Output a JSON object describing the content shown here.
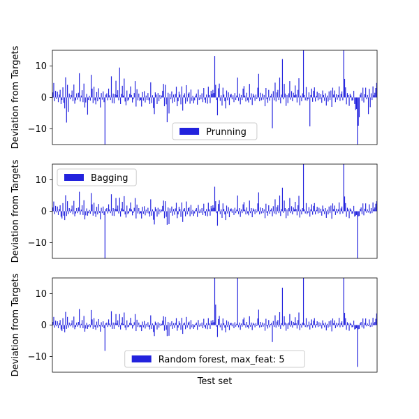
{
  "chart_data": [
    {
      "type": "bar",
      "ylabel": "Deviation from Targets",
      "xlabel": "",
      "ylim": [
        -15,
        15
      ],
      "yticks": [
        -10,
        0,
        10
      ],
      "bar_color": "#2222dd",
      "legend_placement": "lower-center",
      "series": [
        {
          "name": "Prunning",
          "values": [
            1.6,
            4.6,
            -1.2,
            2.1,
            -0.5,
            1.8,
            -1.5,
            0.9,
            2.4,
            -2.1,
            -0.8,
            3.2,
            -1.7,
            -3.5,
            6.4,
            -8.0,
            4.0,
            -4.6,
            1.2,
            -0.6,
            0.8,
            2.2,
            -1.2,
            4.1,
            -2.0,
            -0.9,
            1.3,
            -0.7,
            1.5,
            7.7,
            -1.3,
            0.6,
            2.3,
            -1.5,
            4.4,
            -3.2,
            -1.6,
            1.1,
            -5.5,
            -0.8,
            0.5,
            -1.0,
            7.2,
            2.8,
            -1.8,
            3.4,
            -0.9,
            -2.2,
            1.7,
            -1.2,
            2.9,
            -0.6,
            -3.2,
            1.4,
            -0.7,
            1.9,
            -1.5,
            -15.0,
            0.9,
            1.3,
            -0.9,
            2.8,
            0.7,
            -0.8,
            6.7,
            -1.8,
            1.2,
            -1.9,
            1.0,
            5.3,
            0.8,
            2.3,
            -0.9,
            9.5,
            -2.1,
            1.1,
            3.7,
            0.6,
            6.0,
            -1.3,
            -2.5,
            2.2,
            -1.1,
            -0.7,
            1.1,
            3.5,
            0.8,
            -1.6,
            -0.6,
            1.4,
            5.2,
            -2.9,
            2.6,
            -0.9,
            1.2,
            -1.1,
            -0.8,
            -2.9,
            1.7,
            -1.0,
            2.0,
            -1.6,
            0.6,
            -0.8,
            1.4,
            -0.9,
            -2.1,
            4.8,
            -1.8,
            0.7,
            -3.4,
            -5.3,
            1.6,
            0.9,
            -2.1,
            1.4,
            -1.2,
            0.8,
            -0.5,
            0.6,
            2.1,
            4.3,
            -2.8,
            4.0,
            -2.2,
            -7.9,
            1.5,
            -5.1,
            1.1,
            -0.6,
            1.9,
            -1.8,
            0.9,
            -1.4,
            1.1,
            3.4,
            -2.8,
            -1.2,
            1.8,
            0.9,
            -2.2,
            3.5,
            -4.2,
            0.7,
            1.3,
            -2.0,
            3.9,
            -1.3,
            1.2,
            1.6,
            -2.0,
            2.5,
            -1.1,
            0.5,
            -1.9,
            -0.9,
            0.6,
            1.2,
            -2.3,
            2.5,
            -0.8,
            0.8,
            -0.6,
            1.3,
            -1.5,
            3.0,
            -0.7,
            -1.7,
            0.9,
            -2.0,
            3.4,
            0.8,
            -1.8,
            2.1,
            1.1,
            2.4,
            1.4,
            13.2,
            4.0,
            -0.8,
            -5.7,
            2.9,
            4.4,
            -1.1,
            0.7,
            -2.6,
            3.1,
            0.9,
            -1.2,
            -3.5,
            2.2,
            -0.9,
            1.6,
            -2.4,
            0.9,
            1.1,
            -0.6,
            0.7,
            -1.5,
            1.4,
            -0.8,
            0.6,
            6.3,
            -1.1,
            1.2,
            -2.2,
            0.8,
            -0.8,
            2.8,
            3.6,
            0.6,
            -1.3,
            1.5,
            -0.9,
            -1.6,
            4.3,
            -0.7,
            1.3,
            -2.4,
            1.1,
            0.6,
            -1.1,
            0.9,
            -0.5,
            3.1,
            7.5,
            -1.2,
            1.5,
            -0.9,
            1.2,
            -0.7,
            0.8,
            -2.8,
            3.0,
            -0.6,
            -1.7,
            2.4,
            -1.0,
            0.5,
            1.1,
            -9.8,
            2.0,
            -0.9,
            4.7,
            -1.3,
            1.6,
            2.4,
            -0.8,
            6.3,
            -1.9,
            0.9,
            12.2,
            -0.6,
            4.3,
            1.2,
            -2.7,
            0.8,
            -1.8,
            1.3,
            5.2,
            -0.7,
            2.0,
            -1.2,
            1.5,
            0.7,
            3.8,
            0.9,
            -1.6,
            2.4,
            6.1,
            -2.5,
            0.6,
            -1.2,
            1.3,
            15.0,
            0.8,
            -0.9,
            3.3,
            -1.1,
            -0.6,
            1.6,
            -9.2,
            0.8,
            2.8,
            -1.4,
            2.1,
            3.2,
            -1.3,
            0.5,
            1.8,
            -0.9,
            1.4,
            -0.6,
            1.0,
            -1.7,
            2.2,
            0.8,
            -1.1,
            1.3,
            -2.6,
            0.6,
            -1.3,
            1.9,
            -0.8,
            2.2,
            -3.0,
            3.1,
            0.9,
            2.2,
            -1.5,
            1.0,
            -0.7,
            0.8,
            3.5,
            -1.1,
            1.1,
            1.9,
            -0.9,
            15.0,
            5.9,
            3.2,
            -2.2,
            1.4,
            0.8,
            -2.7,
            1.1,
            0.6,
            -1.0,
            -0.9,
            2.1,
            -2.1,
            -4.0,
            -3.7,
            -15.0,
            -9.0,
            -6.3,
            0.9,
            1.5,
            -1.1,
            3.1,
            -1.6,
            1.0,
            3.1,
            -0.6,
            0.8,
            -5.3,
            2.7,
            -3.1,
            1.3,
            -0.8,
            3.5,
            0.7,
            1.5,
            3.0,
            4.6
          ]
        }
      ]
    },
    {
      "type": "bar",
      "ylabel": "Deviation from Targets",
      "xlabel": "",
      "ylim": [
        -15,
        15
      ],
      "yticks": [
        -10,
        0,
        10
      ],
      "bar_color": "#2222dd",
      "legend_placement": "upper-left",
      "series": [
        {
          "name": "Bagging",
          "values": [
            1.2,
            3.1,
            -0.9,
            1.7,
            -0.4,
            1.5,
            -1.2,
            0.7,
            1.9,
            -1.7,
            -2.3,
            2.6,
            -1.4,
            -2.8,
            5.1,
            -1.5,
            3.2,
            -0.9,
            1.0,
            -0.5,
            0.6,
            1.8,
            -1.0,
            3.3,
            -1.6,
            -0.7,
            1.0,
            -0.6,
            1.2,
            6.2,
            -1.1,
            0.5,
            1.9,
            -1.2,
            3.5,
            -2.6,
            -1.3,
            0.9,
            -1.4,
            -0.6,
            0.4,
            -0.8,
            5.8,
            2.2,
            -1.4,
            2.7,
            -0.7,
            -1.8,
            1.4,
            -1.0,
            2.3,
            -0.5,
            -2.6,
            1.1,
            -0.6,
            1.5,
            -1.2,
            -15.0,
            0.7,
            1.0,
            -0.7,
            2.2,
            0.6,
            -0.6,
            5.4,
            -1.4,
            1.0,
            -1.5,
            0.8,
            4.2,
            0.6,
            1.8,
            -0.7,
            4.3,
            -1.7,
            0.9,
            3.0,
            0.5,
            4.8,
            -1.0,
            -2.0,
            1.8,
            -0.9,
            -0.6,
            0.9,
            2.8,
            0.6,
            -1.3,
            -0.5,
            1.1,
            4.2,
            -2.3,
            2.1,
            -0.7,
            1.0,
            -0.9,
            -0.6,
            -2.3,
            1.4,
            -0.8,
            1.6,
            -1.3,
            0.5,
            -0.6,
            1.1,
            -0.7,
            -1.7,
            3.8,
            -1.4,
            0.6,
            -2.7,
            -4.2,
            1.3,
            0.7,
            -1.7,
            1.1,
            -1.0,
            0.6,
            -0.4,
            0.5,
            1.7,
            3.4,
            -2.2,
            3.2,
            -1.8,
            -4.3,
            1.2,
            -4.1,
            0.9,
            -0.5,
            1.5,
            -1.4,
            0.7,
            -1.1,
            0.9,
            2.7,
            -2.2,
            -1.0,
            1.4,
            0.7,
            -1.8,
            2.8,
            -3.4,
            0.6,
            1.0,
            -1.6,
            3.1,
            -1.0,
            1.0,
            1.3,
            -1.6,
            2.0,
            -0.9,
            0.4,
            -1.5,
            -0.7,
            0.5,
            1.0,
            -1.8,
            2.0,
            -0.6,
            0.6,
            -0.5,
            1.0,
            -1.2,
            2.4,
            -0.6,
            -1.4,
            0.7,
            -1.6,
            2.7,
            0.6,
            -1.4,
            1.7,
            0.9,
            1.9,
            1.1,
            7.8,
            3.2,
            -0.6,
            -4.6,
            2.3,
            3.5,
            -0.9,
            0.6,
            -2.1,
            2.5,
            0.7,
            -1.0,
            -2.8,
            1.8,
            -0.7,
            1.3,
            -1.9,
            0.7,
            0.9,
            -0.5,
            0.6,
            -1.2,
            1.1,
            -0.6,
            0.5,
            5.0,
            -0.9,
            1.0,
            -1.8,
            0.6,
            -0.6,
            2.2,
            2.9,
            0.5,
            -1.0,
            1.2,
            -0.7,
            -1.3,
            3.4,
            -0.6,
            1.0,
            -1.9,
            0.9,
            0.5,
            -0.9,
            0.7,
            -0.4,
            2.5,
            6.0,
            -1.0,
            1.2,
            -0.7,
            1.0,
            -0.6,
            0.6,
            -2.2,
            2.4,
            -0.5,
            -1.4,
            1.9,
            -0.8,
            0.4,
            0.9,
            -1.6,
            1.6,
            -0.7,
            3.8,
            -1.0,
            1.3,
            1.9,
            -0.6,
            5.0,
            -1.5,
            0.7,
            7.5,
            -0.5,
            3.4,
            1.0,
            -2.2,
            0.6,
            -1.4,
            1.0,
            4.2,
            -0.6,
            1.6,
            -1.0,
            1.2,
            0.6,
            3.0,
            0.7,
            -1.3,
            1.9,
            4.9,
            -2.0,
            0.5,
            -1.0,
            1.0,
            15.0,
            0.6,
            -0.7,
            2.6,
            -0.9,
            -0.5,
            1.3,
            -1.7,
            0.6,
            2.2,
            -1.1,
            1.7,
            2.6,
            -1.0,
            0.4,
            1.4,
            -0.7,
            1.1,
            -0.5,
            0.8,
            -1.4,
            1.8,
            0.6,
            -0.9,
            1.0,
            -2.1,
            0.5,
            -1.0,
            1.5,
            -0.6,
            1.8,
            -2.4,
            2.5,
            0.7,
            1.8,
            -1.2,
            0.8,
            -0.6,
            0.6,
            2.8,
            -0.9,
            0.9,
            1.5,
            -0.7,
            15.0,
            4.7,
            2.6,
            -1.8,
            1.1,
            0.6,
            -2.2,
            0.9,
            0.5,
            -0.8,
            -0.7,
            1.7,
            -1.7,
            -1.4,
            -1.2,
            -15.0,
            -1.6,
            -1.5,
            0.7,
            1.2,
            -0.9,
            2.5,
            -1.3,
            0.8,
            2.5,
            -0.5,
            0.6,
            -0.4,
            2.2,
            -0.7,
            1.0,
            -0.6,
            2.8,
            0.6,
            1.2,
            2.4,
            3.2
          ]
        }
      ]
    },
    {
      "type": "bar",
      "ylabel": "Deviation from Targets",
      "xlabel": "Test set",
      "ylim": [
        -15,
        15
      ],
      "yticks": [
        -10,
        0,
        10
      ],
      "bar_color": "#2222dd",
      "legend_placement": "lower-center",
      "series": [
        {
          "name": "Random forest, max_feat: 5",
          "values": [
            1.0,
            2.6,
            -0.8,
            1.4,
            -0.4,
            1.2,
            -1.0,
            0.6,
            1.6,
            -1.4,
            -1.9,
            2.2,
            -1.2,
            -2.3,
            4.2,
            -1.2,
            2.6,
            -0.8,
            0.8,
            -0.4,
            0.5,
            1.5,
            -0.8,
            2.7,
            -1.3,
            -0.6,
            0.8,
            -0.5,
            1.0,
            5.1,
            -0.9,
            0.4,
            1.6,
            -1.0,
            2.9,
            -2.1,
            -1.1,
            0.7,
            -1.2,
            -0.5,
            0.3,
            -0.7,
            4.8,
            1.8,
            -1.2,
            2.2,
            -0.6,
            -1.5,
            1.1,
            -0.8,
            1.9,
            -0.4,
            -2.1,
            0.9,
            -0.5,
            1.2,
            -1.0,
            -8.2,
            0.6,
            0.8,
            -0.6,
            1.8,
            0.5,
            -0.5,
            4.4,
            -1.2,
            0.8,
            -1.2,
            0.7,
            3.5,
            0.5,
            1.5,
            -0.6,
            3.5,
            -1.4,
            0.7,
            2.5,
            0.4,
            4.0,
            -0.8,
            -1.6,
            1.5,
            -0.7,
            -0.5,
            0.7,
            2.3,
            0.5,
            -1.1,
            -0.4,
            0.9,
            3.5,
            -1.9,
            1.7,
            -0.6,
            0.8,
            -0.7,
            -0.5,
            -1.9,
            1.1,
            -0.7,
            1.3,
            -1.1,
            0.4,
            -0.5,
            0.9,
            -0.6,
            -1.4,
            3.1,
            -1.2,
            0.5,
            -2.2,
            -3.5,
            1.1,
            0.6,
            -1.4,
            0.9,
            -0.8,
            0.5,
            -0.3,
            0.4,
            1.4,
            2.8,
            -1.8,
            2.6,
            -1.5,
            -3.5,
            1.0,
            -3.4,
            0.7,
            -0.4,
            1.2,
            -1.2,
            0.6,
            -0.9,
            0.7,
            2.2,
            -1.8,
            -0.8,
            1.2,
            0.6,
            -1.5,
            2.3,
            -2.8,
            0.5,
            0.8,
            -1.3,
            2.6,
            -0.8,
            0.8,
            1.1,
            -1.3,
            1.6,
            -0.7,
            0.3,
            -1.2,
            -0.6,
            0.4,
            0.8,
            -1.5,
            1.6,
            -0.5,
            0.5,
            -0.4,
            0.8,
            -1.0,
            2.0,
            -0.5,
            -1.1,
            0.6,
            -1.3,
            2.2,
            0.5,
            -1.2,
            1.4,
            0.7,
            1.6,
            0.9,
            15.0,
            6.5,
            -0.5,
            -3.8,
            1.9,
            2.9,
            -0.7,
            0.5,
            -1.7,
            2.1,
            0.6,
            -0.8,
            -2.3,
            1.5,
            -0.6,
            1.1,
            -1.6,
            0.6,
            0.7,
            -0.4,
            0.5,
            -1.0,
            0.9,
            -0.5,
            0.4,
            15.0,
            -0.7,
            0.8,
            -1.5,
            0.5,
            -0.5,
            1.8,
            2.4,
            0.4,
            -0.8,
            1.0,
            -0.6,
            -1.1,
            2.8,
            -0.5,
            0.8,
            -1.6,
            0.7,
            0.4,
            -0.7,
            0.6,
            -0.3,
            2.1,
            4.9,
            -0.8,
            1.0,
            -0.6,
            0.8,
            -0.5,
            0.5,
            -1.8,
            2.0,
            -0.4,
            -1.1,
            1.6,
            -0.7,
            0.3,
            0.7,
            -5.4,
            1.3,
            -0.6,
            3.1,
            -0.8,
            1.1,
            1.6,
            -0.5,
            4.1,
            -1.2,
            0.6,
            11.9,
            -0.4,
            2.8,
            0.8,
            -1.8,
            0.5,
            -1.2,
            0.8,
            3.5,
            -0.5,
            1.3,
            -0.8,
            1.0,
            0.5,
            2.5,
            0.6,
            -1.1,
            1.6,
            4.0,
            -1.6,
            0.4,
            -0.8,
            0.8,
            15.0,
            0.5,
            -0.6,
            2.2,
            -0.7,
            -0.4,
            1.1,
            -1.4,
            0.5,
            1.8,
            -0.9,
            1.4,
            2.2,
            -0.8,
            0.3,
            1.2,
            -0.6,
            0.9,
            -0.4,
            0.7,
            -1.1,
            1.5,
            0.5,
            -0.7,
            0.8,
            -1.7,
            0.4,
            -0.8,
            1.2,
            -0.5,
            1.5,
            -2.0,
            2.1,
            0.6,
            1.5,
            -1.0,
            0.7,
            -0.5,
            0.5,
            2.3,
            -0.7,
            0.7,
            1.2,
            -0.6,
            15.0,
            3.9,
            2.2,
            -1.5,
            0.9,
            0.5,
            -1.8,
            0.7,
            0.4,
            -0.7,
            -0.6,
            1.4,
            -1.4,
            -1.2,
            -1.0,
            -13.3,
            -1.3,
            -1.2,
            0.6,
            1.0,
            -0.7,
            2.1,
            -1.1,
            0.7,
            2.1,
            -0.4,
            0.5,
            -0.3,
            1.8,
            -0.6,
            0.8,
            -0.5,
            2.3,
            0.5,
            1.0,
            2.0,
            3.7
          ]
        }
      ]
    }
  ]
}
